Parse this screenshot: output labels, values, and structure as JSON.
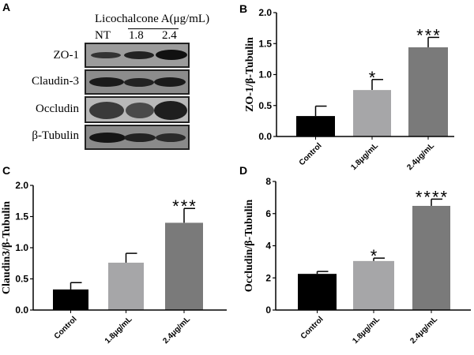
{
  "panel_labels": [
    "A",
    "B",
    "C",
    "D"
  ],
  "blot": {
    "treatment_label": "Licochalcone A(μg/mL)",
    "lanes": [
      "NT",
      "1.8",
      "2.4"
    ],
    "rows": [
      "ZO-1",
      "Claudin-3",
      "Occludin",
      "β-Tubulin"
    ]
  },
  "colors": {
    "control": "#000000",
    "low": "#a6a6a8",
    "high": "#7a7a7a"
  },
  "chart_data": [
    {
      "panel": "B",
      "type": "bar",
      "ylabel": "ZO-1/β-Tubulin",
      "categories": [
        "Control",
        "1.8μg/mL",
        "2.4μg/mL"
      ],
      "values": [
        0.33,
        0.75,
        1.44
      ],
      "errors": [
        0.16,
        0.17,
        0.16
      ],
      "significance": [
        "",
        "*",
        "***"
      ],
      "ylim": [
        0,
        2.0
      ],
      "yticks": [
        "0.0",
        "0.5",
        "1.0",
        "1.5",
        "2.0"
      ],
      "ytick_values": [
        0,
        0.5,
        1.0,
        1.5,
        2.0
      ]
    },
    {
      "panel": "C",
      "type": "bar",
      "ylabel": "Claudin3/β-Tubulin",
      "categories": [
        "Control",
        "1.8μg/mL",
        "2.4μg/mL"
      ],
      "values": [
        0.33,
        0.76,
        1.4
      ],
      "errors": [
        0.11,
        0.15,
        0.23
      ],
      "significance": [
        "",
        "",
        "***"
      ],
      "ylim": [
        0,
        2.0
      ],
      "yticks": [
        "0.0",
        "0.5",
        "1.0",
        "1.5",
        "2.0"
      ],
      "ytick_values": [
        0,
        0.5,
        1.0,
        1.5,
        2.0
      ]
    },
    {
      "panel": "D",
      "type": "bar",
      "ylabel": "Occludin/β-Tubulin",
      "categories": [
        "Control",
        "1.8μg/mL",
        "2.4μg/mL"
      ],
      "values": [
        2.25,
        3.05,
        6.48
      ],
      "errors": [
        0.15,
        0.18,
        0.42
      ],
      "significance": [
        "",
        "*",
        "****"
      ],
      "ylim": [
        0,
        8
      ],
      "yticks": [
        "0",
        "2",
        "4",
        "6",
        "8"
      ],
      "ytick_values": [
        0,
        2,
        4,
        6,
        8
      ]
    }
  ]
}
